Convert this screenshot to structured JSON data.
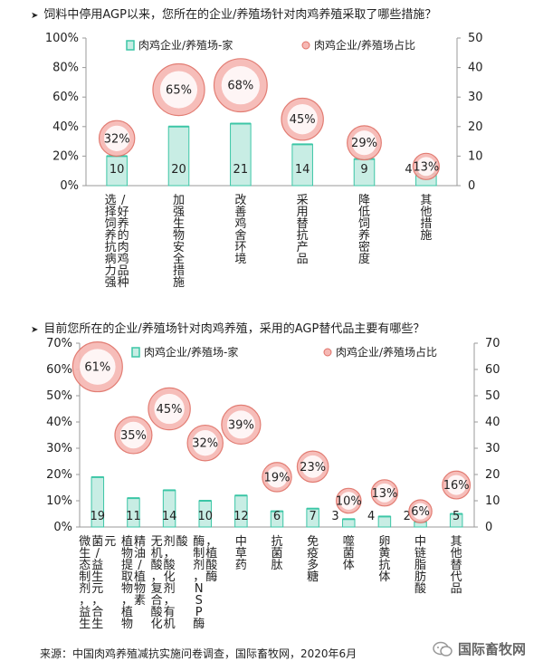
{
  "chart_data": [
    {
      "type": "bar",
      "title": "饲料中停用AGP以来，您所在的企业/养殖场针对肉鸡养殖采取了哪些措施？",
      "categories": [
        "选择饲养抗病力强/好养的肉鸡品种",
        "加强生物安全措施",
        "改善鸡舍环境",
        "采用替抗产品",
        "降低饲养密度",
        "其他措施"
      ],
      "series": [
        {
          "name": "肉鸡企业/养殖场-家",
          "values": [
            10,
            20,
            21,
            14,
            9,
            4
          ],
          "axis": "right"
        },
        {
          "name": "肉鸡企业/养殖场占比",
          "values": [
            32,
            65,
            68,
            45,
            29,
            13
          ],
          "axis": "left",
          "unit": "%"
        }
      ],
      "ylim_left": [
        0,
        100
      ],
      "yticks_left": [
        "0%",
        "20%",
        "40%",
        "60%",
        "80%",
        "100%"
      ],
      "ylim_right": [
        0,
        50
      ],
      "yticks_right": [
        "0",
        "10",
        "20",
        "30",
        "40",
        "50"
      ],
      "legend": "top"
    },
    {
      "type": "bar",
      "title": "目前您所在的企业/养殖场针对肉鸡养殖，采用的AGP替代品主要有哪些？",
      "categories": [
        "微生态制剂，益生菌/益生元，合生元",
        "植物提取物，植物精油/植物素",
        "无机酸，复合酸化剂，酸化剂，有机酸",
        "酶制剂，NSP酶，植酸酶",
        "中草药",
        "抗菌肽",
        "免疫多糖",
        "噬菌体",
        "卵黄抗体",
        "中链脂肪酸",
        "其他替代品"
      ],
      "series": [
        {
          "name": "肉鸡企业/养殖场-家",
          "values": [
            19,
            11,
            14,
            10,
            12,
            6,
            7,
            3,
            4,
            2,
            5
          ],
          "axis": "right"
        },
        {
          "name": "肉鸡企业/养殖场占比",
          "values": [
            61,
            35,
            45,
            32,
            39,
            19,
            23,
            10,
            13,
            6,
            16
          ],
          "axis": "left",
          "unit": "%"
        }
      ],
      "ylim_left": [
        0,
        70
      ],
      "yticks_left": [
        "0%",
        "10%",
        "20%",
        "30%",
        "40%",
        "50%",
        "60%",
        "70%"
      ],
      "ylim_right": [
        0,
        70
      ],
      "yticks_right": [
        "0",
        "10",
        "20",
        "30",
        "40",
        "50",
        "60",
        "70"
      ],
      "legend": "top"
    }
  ],
  "source": "来源：中国肉鸡养殖减抗实施问卷调查，国际畜牧网，2020年6月",
  "watermark": "国际畜牧网",
  "colors": {
    "bar_fill": "#c8ede4",
    "bar_edge": "#3cc6a6",
    "bubble_fill": "#f6b8b4",
    "bubble_edge": "#e07268",
    "axis": "#9a9a9a"
  }
}
